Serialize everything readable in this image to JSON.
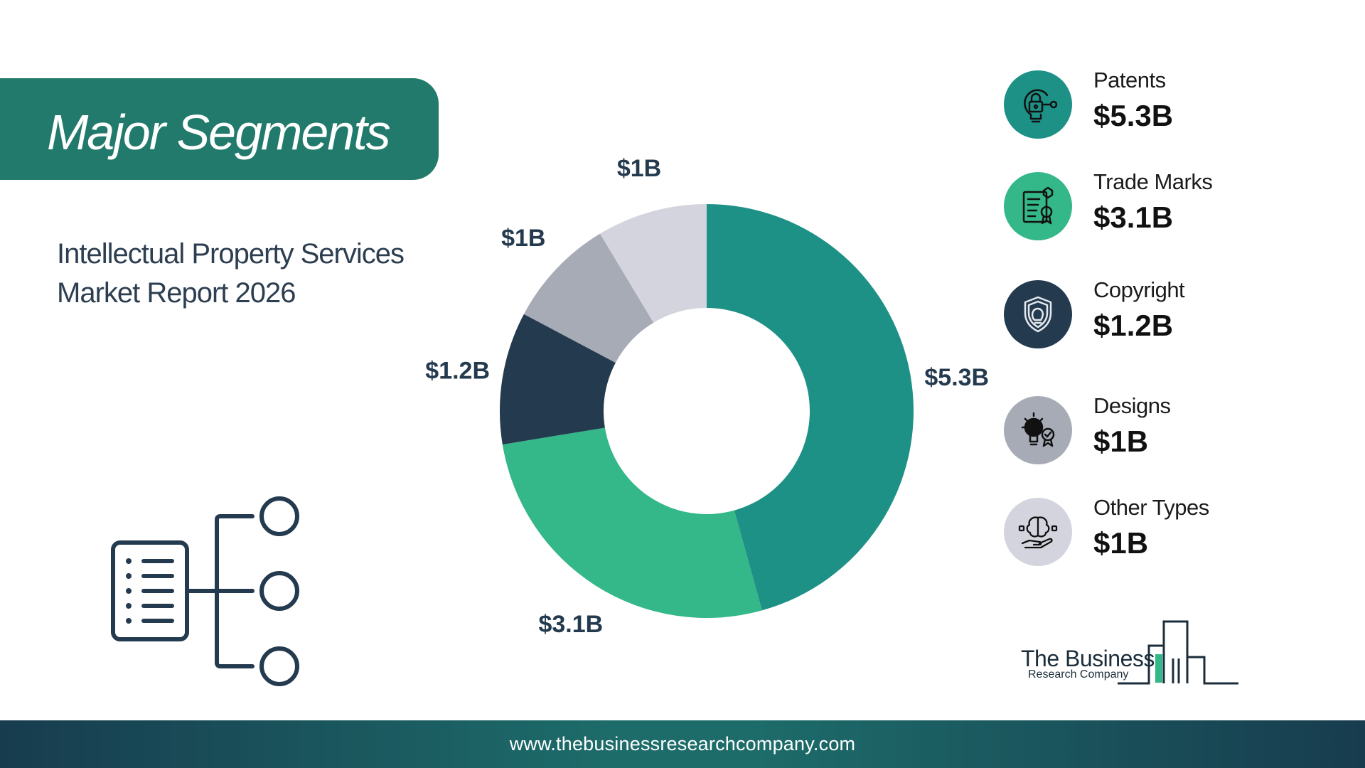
{
  "title": "Major Segments",
  "subtitle_line1": "Intellectual Property Services",
  "subtitle_line2": "Market Report 2026",
  "chart_data": {
    "type": "pie",
    "donut": true,
    "categories": [
      "Patents",
      "Trade Marks",
      "Copyright",
      "Designs",
      "Other Types"
    ],
    "values": [
      5.3,
      3.1,
      1.2,
      1.0,
      1.0
    ],
    "labels": [
      "$5.3B",
      "$3.1B",
      "$1.2B",
      "$1B",
      "$1B"
    ],
    "colors": [
      "#1d9186",
      "#34b789",
      "#243a4e",
      "#a6abb6",
      "#d3d4de"
    ],
    "start": "12 o'clock",
    "direction": "clockwise"
  },
  "legend": [
    {
      "name": "Patents",
      "value": "$5.3B",
      "color": "#1d9186",
      "icon": "lock-lightbulb-icon"
    },
    {
      "name": "Trade Marks",
      "value": "$3.1B",
      "color": "#34b789",
      "icon": "certificate-icon"
    },
    {
      "name": "Copyright",
      "value": "$1.2B",
      "color": "#243a4e",
      "icon": "shield-bulb-icon"
    },
    {
      "name": "Designs",
      "value": "$1B",
      "color": "#a6abb6",
      "icon": "idea-money-icon"
    },
    {
      "name": "Other Types",
      "value": "$1B",
      "color": "#d3d4de",
      "icon": "brain-hand-icon"
    }
  ],
  "logo": {
    "line1": "The Business",
    "line2": "Research Company"
  },
  "footer_url": "www.thebusinessresearchcompany.com"
}
